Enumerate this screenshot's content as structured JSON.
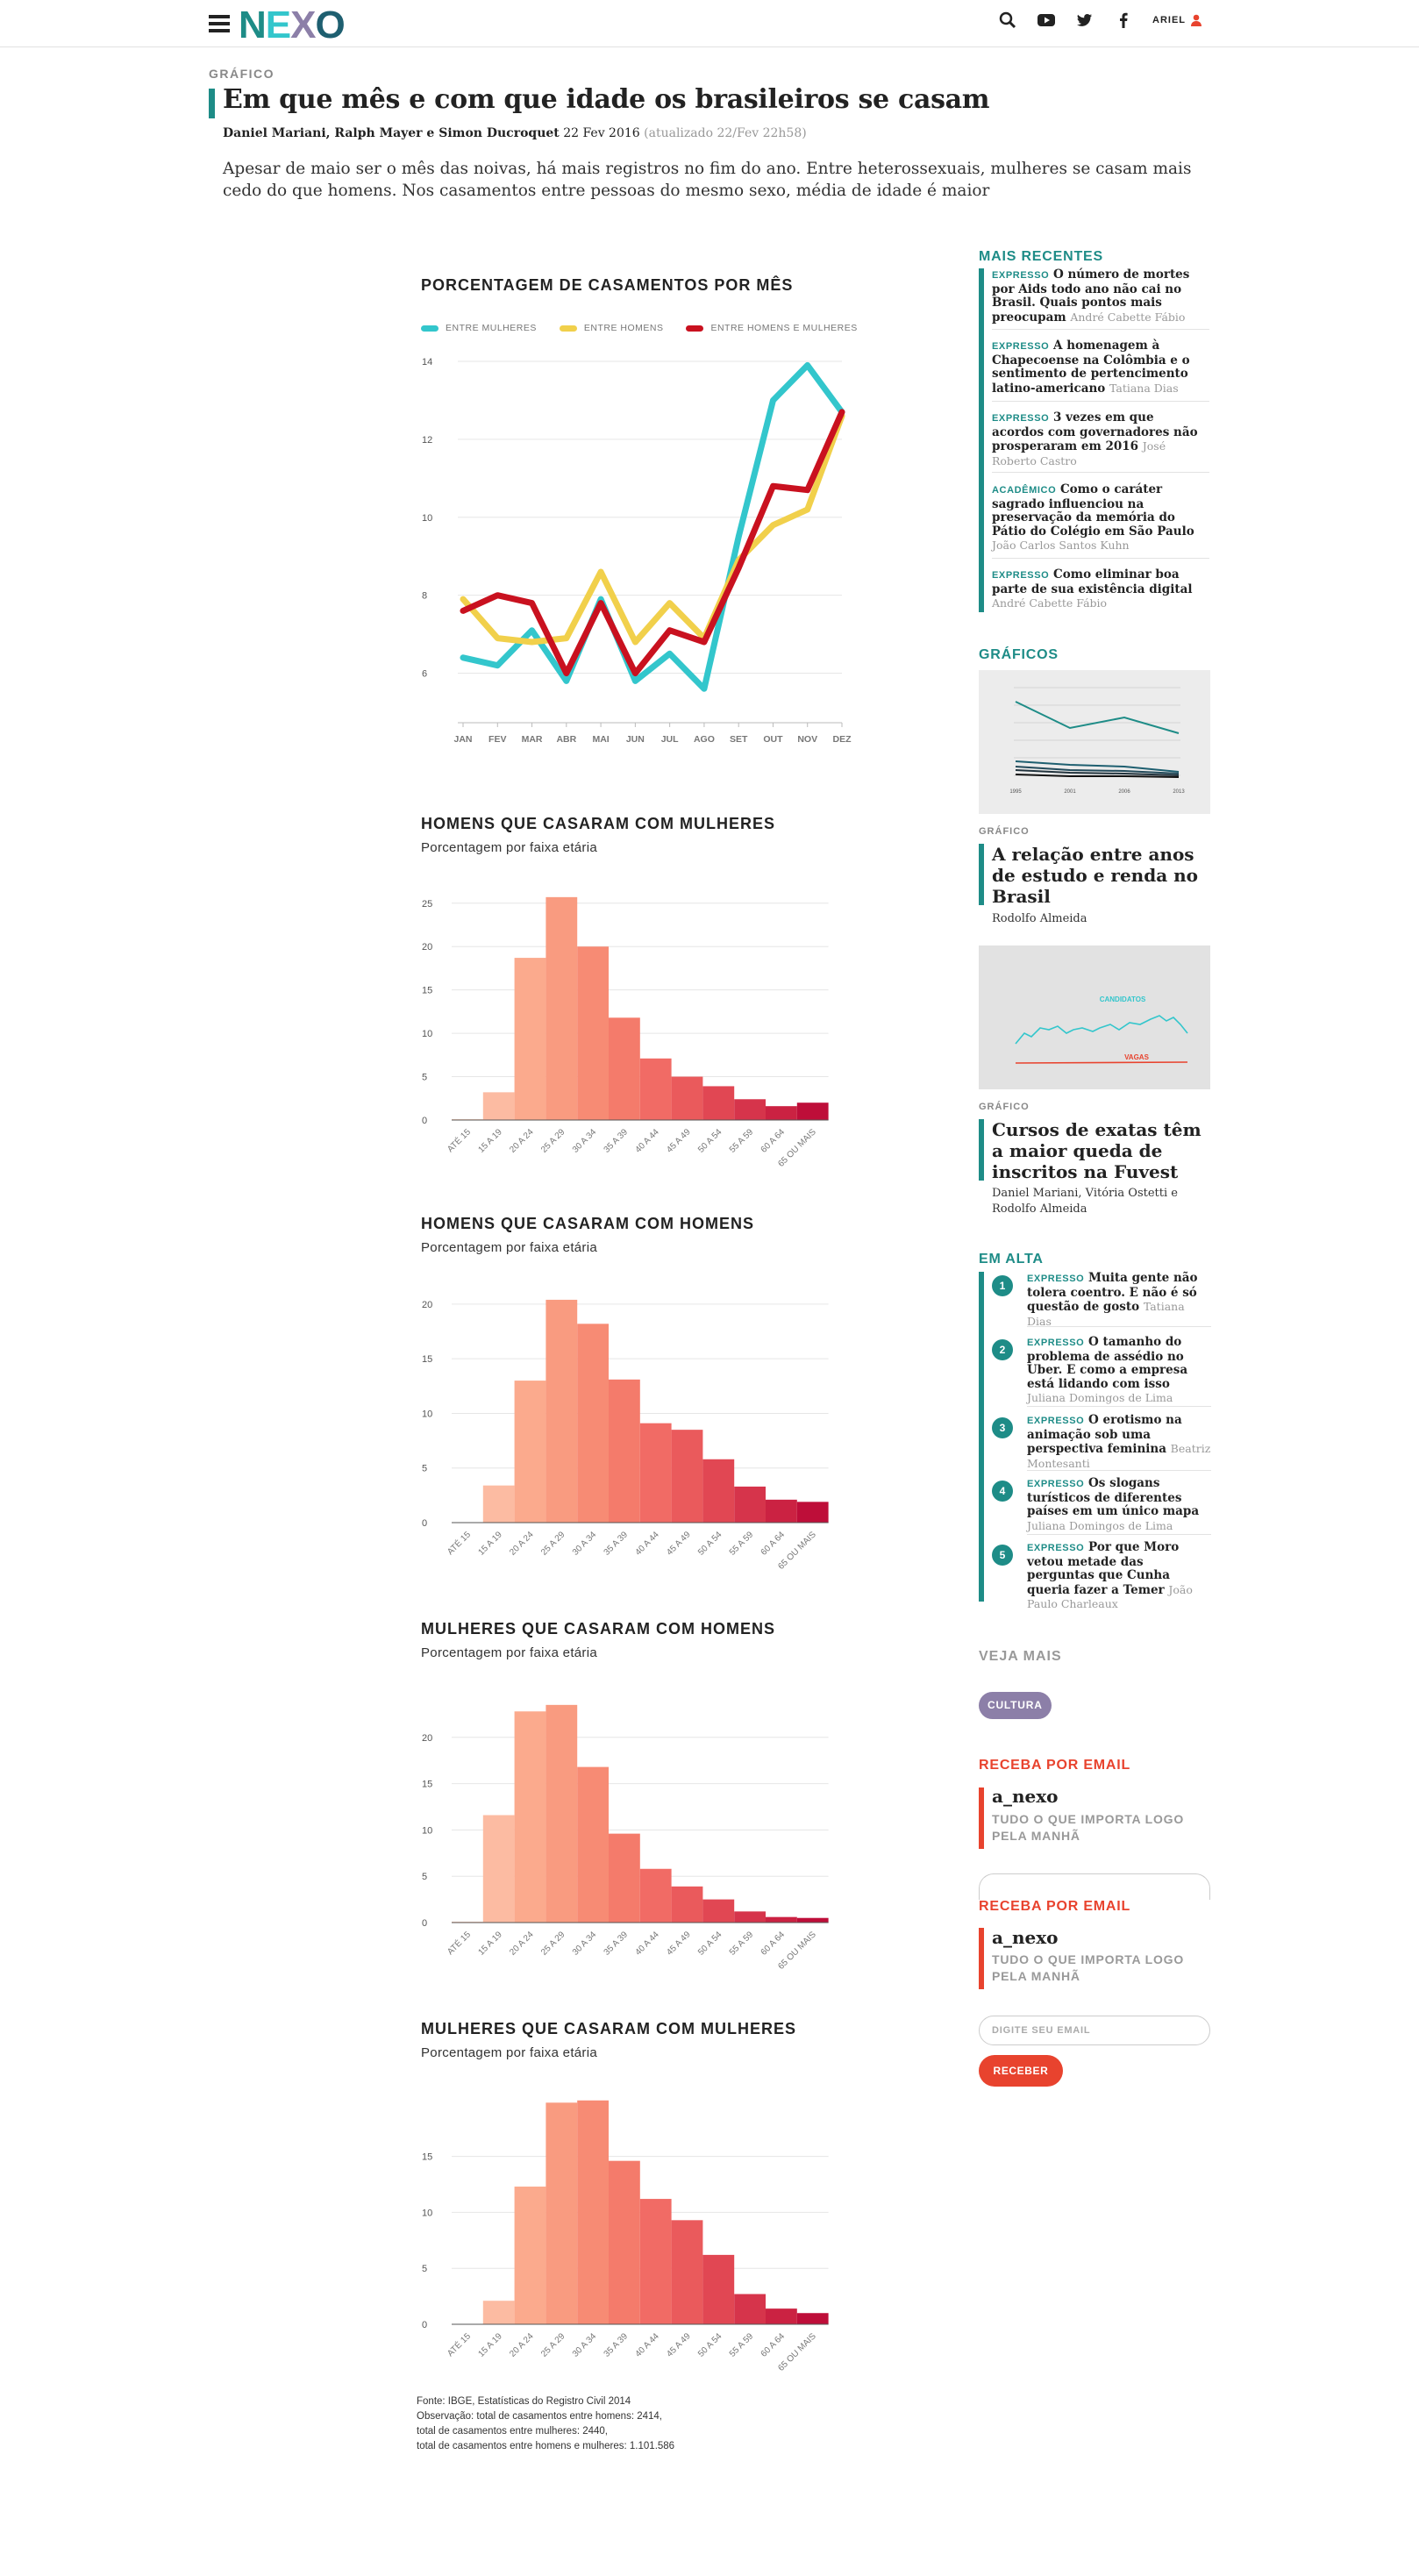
{
  "header": {
    "logo": "NEXO",
    "user": "ARIEL"
  },
  "article": {
    "kicker": "GRÁFICO",
    "title": "Em que mês e com que idade os brasileiros se casam",
    "authors": "Daniel Mariani, Ralph Mayer e Simon Ducroquet",
    "date": "22 Fev 2016",
    "updated": "(atualizado 22/Fev 22h58)",
    "lede": "Apesar de maio ser o mês das noivas, há mais registros no fim do ano. Entre heterossexuais, mulheres se casam mais cedo do que homens. Nos casamentos entre pessoas do mesmo sexo, média de idade é maior"
  },
  "chart_data": [
    {
      "type": "line",
      "title": "PORCENTAGEM DE CASAMENTOS POR MÊS",
      "categories": [
        "JAN",
        "FEV",
        "MAR",
        "ABR",
        "MAI",
        "JUN",
        "JUL",
        "AGO",
        "SET",
        "OUT",
        "NOV",
        "DEZ"
      ],
      "ylim": [
        5,
        14
      ],
      "yticks": [
        6,
        8,
        10,
        12,
        14
      ],
      "series": [
        {
          "name": "ENTRE MULHERES",
          "color": "#33c6cc",
          "values": [
            6.4,
            6.2,
            7.1,
            5.8,
            7.9,
            5.8,
            6.5,
            5.6,
            9.5,
            13.0,
            13.9,
            12.7
          ]
        },
        {
          "name": "ENTRE HOMENS",
          "color": "#f1d04b",
          "values": [
            7.9,
            6.9,
            6.8,
            6.9,
            8.6,
            6.8,
            7.8,
            6.9,
            8.9,
            9.8,
            10.2,
            12.6
          ]
        },
        {
          "name": "ENTRE HOMENS E MULHERES",
          "color": "#c9111f",
          "values": [
            7.6,
            8.0,
            7.8,
            6.0,
            7.8,
            6.0,
            7.1,
            6.8,
            8.7,
            10.8,
            10.7,
            12.7
          ]
        }
      ]
    },
    {
      "type": "bar",
      "title": "HOMENS QUE CASARAM COM MULHERES",
      "subtitle": "Porcentagem por faixa etária",
      "categories": [
        "ATÉ 15",
        "15 A 19",
        "20 A 24",
        "25 A 29",
        "30 A 34",
        "35 A 39",
        "40 A 44",
        "45 A 49",
        "50 A 54",
        "55 A 59",
        "60 A 64",
        "65 OU MAIS"
      ],
      "ylim": [
        0,
        27
      ],
      "yticks": [
        0,
        5,
        10,
        15,
        20,
        25
      ],
      "values": [
        0.1,
        3.2,
        18.7,
        25.7,
        20.0,
        11.8,
        7.1,
        5.0,
        3.9,
        2.4,
        1.6,
        2.0
      ]
    },
    {
      "type": "bar",
      "title": "HOMENS QUE CASARAM COM HOMENS",
      "subtitle": "Porcentagem por faixa etária",
      "categories": [
        "ATÉ 15",
        "15 A 19",
        "20 A 24",
        "25 A 29",
        "30 A 34",
        "35 A 39",
        "40 A 44",
        "45 A 49",
        "50 A 54",
        "55 A 59",
        "60 A 64",
        "65 OU MAIS"
      ],
      "ylim": [
        0,
        22
      ],
      "yticks": [
        0,
        5,
        10,
        15,
        20
      ],
      "values": [
        0,
        3.4,
        13.0,
        20.4,
        18.2,
        13.1,
        9.1,
        8.5,
        5.8,
        3.3,
        2.1,
        1.9
      ]
    },
    {
      "type": "bar",
      "title": "MULHERES QUE CASARAM COM HOMENS",
      "subtitle": "Porcentagem por faixa etária",
      "categories": [
        "ATÉ 15",
        "15 A 19",
        "20 A 24",
        "25 A 29",
        "30 A 34",
        "35 A 39",
        "40 A 44",
        "45 A 49",
        "50 A 54",
        "55 A 59",
        "60 A 64",
        "65 OU MAIS"
      ],
      "ylim": [
        0,
        25
      ],
      "yticks": [
        0,
        5,
        10,
        15,
        20
      ],
      "values": [
        0.1,
        11.6,
        22.8,
        23.5,
        16.8,
        9.6,
        5.8,
        3.9,
        2.5,
        1.2,
        0.6,
        0.5
      ]
    },
    {
      "type": "bar",
      "title": "MULHERES QUE CASARAM COM MULHERES",
      "subtitle": "Porcentagem por faixa etária",
      "categories": [
        "ATÉ 15",
        "15 A 19",
        "20 A 24",
        "25 A 29",
        "30 A 34",
        "35 A 39",
        "40 A 44",
        "45 A 49",
        "50 A 54",
        "55 A 59",
        "60 A 64",
        "65 OU MAIS"
      ],
      "ylim": [
        0,
        21
      ],
      "yticks": [
        0,
        5,
        10,
        15
      ],
      "values": [
        0,
        2.1,
        12.3,
        19.8,
        20.0,
        14.6,
        11.2,
        9.3,
        6.2,
        2.7,
        1.4,
        1.0
      ]
    }
  ],
  "bar_palette": [
    "#fdd2bf",
    "#fcbba2",
    "#fbaa8d",
    "#f99b80",
    "#f78b74",
    "#f47b6b",
    "#f16b65",
    "#ea5a5c",
    "#e14753",
    "#d6344b",
    "#cb2242",
    "#be0e39"
  ],
  "source": {
    "line1": "Fonte: IBGE, Estatísticas do Registro Civil 2014",
    "line2": "Observação: total de casamentos entre homens: 2414,",
    "line3": "total de casamentos entre mulheres: 2440,",
    "line4": "total de casamentos entre homens e mulheres: 1.101.586"
  },
  "sidebar": {
    "recentes_title": "MAIS RECENTES",
    "recentes": [
      {
        "tag": "EXPRESSO",
        "title": "O número de mortes por Aids todo ano não cai no Brasil. Quais pontos mais preocupam",
        "author": "André Cabette Fábio"
      },
      {
        "tag": "EXPRESSO",
        "title": "A homenagem à Chapecoense na Colômbia e o sentimento de pertencimento latino-americano",
        "author": "Tatiana Dias"
      },
      {
        "tag": "EXPRESSO",
        "title": "3 vezes em que acordos com governadores não prosperaram em 2016",
        "author": "José Roberto Castro"
      },
      {
        "tag": "ACADÊMICO",
        "title": "Como o caráter sagrado influenciou na preservação da memória do Pátio do Colégio em São Paulo",
        "author": "João Carlos Santos Kuhn"
      },
      {
        "tag": "EXPRESSO",
        "title": "Como eliminar boa parte de sua existência digital",
        "author": "André Cabette Fábio"
      }
    ],
    "graficos_title": "GRÁFICOS",
    "thumb1_years": [
      "1995",
      "2001",
      "2006",
      "2013"
    ],
    "g1_kicker": "GRÁFICO",
    "g1_title": "A relação entre anos de estudo e renda no Brasil",
    "g1_author": "Rodolfo Almeida",
    "thumb2_labels": {
      "a": "CANDIDATOS",
      "b": "VAGAS"
    },
    "g2_kicker": "GRÁFICO",
    "g2_title": "Cursos de exatas têm a maior queda de inscritos na Fuvest",
    "g2_author": "Daniel Mariani, Vitória Ostetti e Rodolfo Almeida",
    "alta_title": "EM ALTA",
    "alta": [
      {
        "n": "1",
        "tag": "EXPRESSO",
        "title": "Muita gente não tolera coentro. E não é só questão de gosto",
        "author": "Tatiana Dias"
      },
      {
        "n": "2",
        "tag": "EXPRESSO",
        "title": "O tamanho do problema de assédio no Uber. E como a empresa está lidando com isso",
        "author": "Juliana Domingos de Lima"
      },
      {
        "n": "3",
        "tag": "EXPRESSO",
        "title": "O erotismo na animação sob uma perspectiva feminina",
        "author": "Beatriz Montesanti"
      },
      {
        "n": "4",
        "tag": "EXPRESSO",
        "title": "Os slogans turísticos de diferentes países em um único mapa",
        "author": "Juliana Domingos de Lima"
      },
      {
        "n": "5",
        "tag": "EXPRESSO",
        "title": "Por que Moro vetou metade das perguntas que Cunha queria fazer a Temer",
        "author": "João Paulo Charleaux"
      }
    ],
    "veja_mais": "VEJA MAIS",
    "pill": "CULTURA",
    "newsletter_title": "RECEBA POR EMAIL",
    "newsletter_name": "a_nexo",
    "newsletter_desc": "TUDO O QUE IMPORTA LOGO PELA MANHÃ",
    "email_placeholder": "DIGITE SEU EMAIL",
    "button": "RECEBER"
  }
}
